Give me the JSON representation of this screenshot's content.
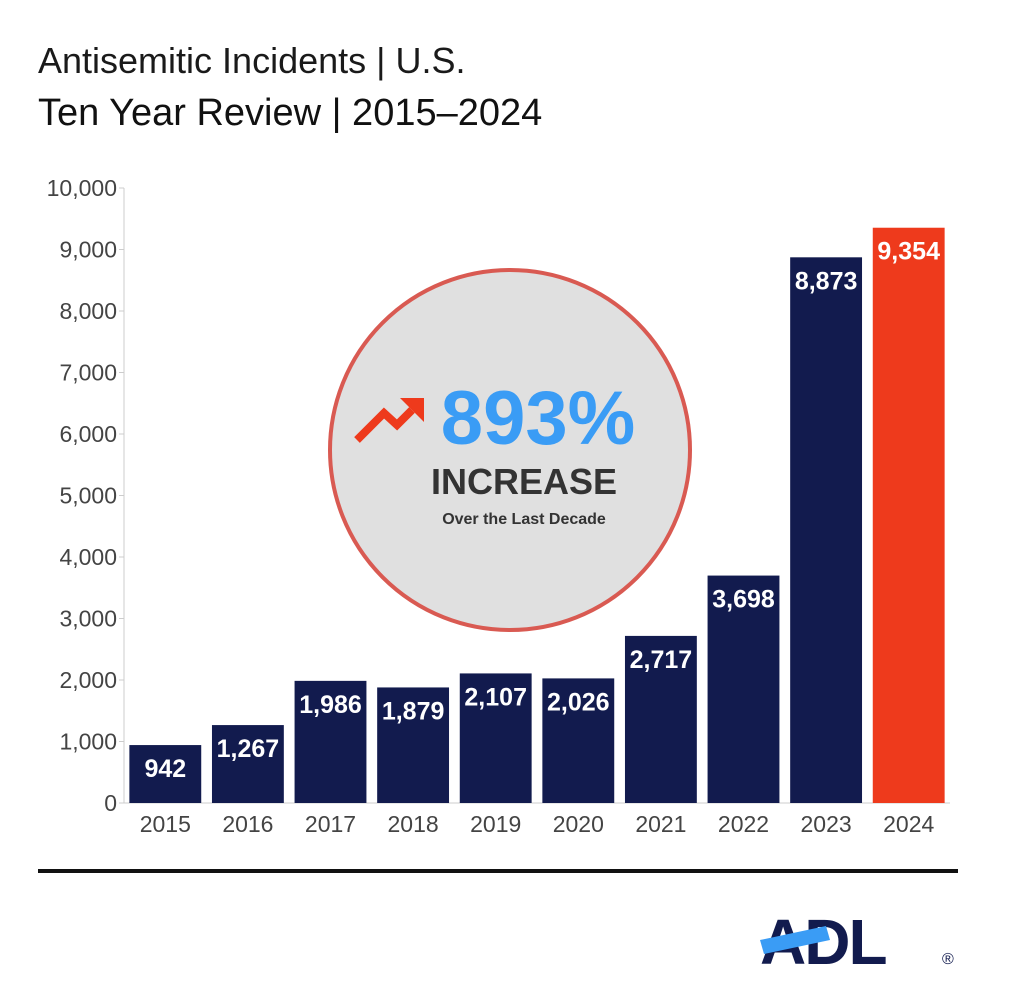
{
  "title": "Antisemitic Incidents | U.S.",
  "subtitle": "Ten Year Review | 2015–2024",
  "chart_data": {
    "type": "bar",
    "categories": [
      "2015",
      "2016",
      "2017",
      "2018",
      "2019",
      "2020",
      "2021",
      "2022",
      "2023",
      "2024"
    ],
    "values": [
      942,
      1267,
      1986,
      1879,
      2107,
      2026,
      2717,
      3698,
      8873,
      9354
    ],
    "value_labels": [
      "942",
      "1,267",
      "1,986",
      "1,879",
      "2,107",
      "2,026",
      "2,717",
      "3,698",
      "8,873",
      "9,354"
    ],
    "ylim": [
      0,
      10000
    ],
    "yticks": [
      0,
      1000,
      2000,
      3000,
      4000,
      5000,
      6000,
      7000,
      8000,
      9000,
      10000
    ],
    "ytick_labels": [
      "0",
      "1,000",
      "2,000",
      "3,000",
      "4,000",
      "5,000",
      "6,000",
      "7,000",
      "8,000",
      "9,000",
      "10,000"
    ],
    "grid": false,
    "xlabel": "",
    "ylabel": "",
    "colors": {
      "bar": "#121b4e",
      "highlight": "#ee3a1c",
      "highlight_category": "2024"
    },
    "annotation": {
      "value": "893%",
      "label": "INCREASE",
      "sublabel": "Over the Last Decade"
    }
  },
  "logo": {
    "text": "ADL",
    "registered": "®",
    "color": "#121b4e",
    "accent": "#3a9cf5"
  }
}
